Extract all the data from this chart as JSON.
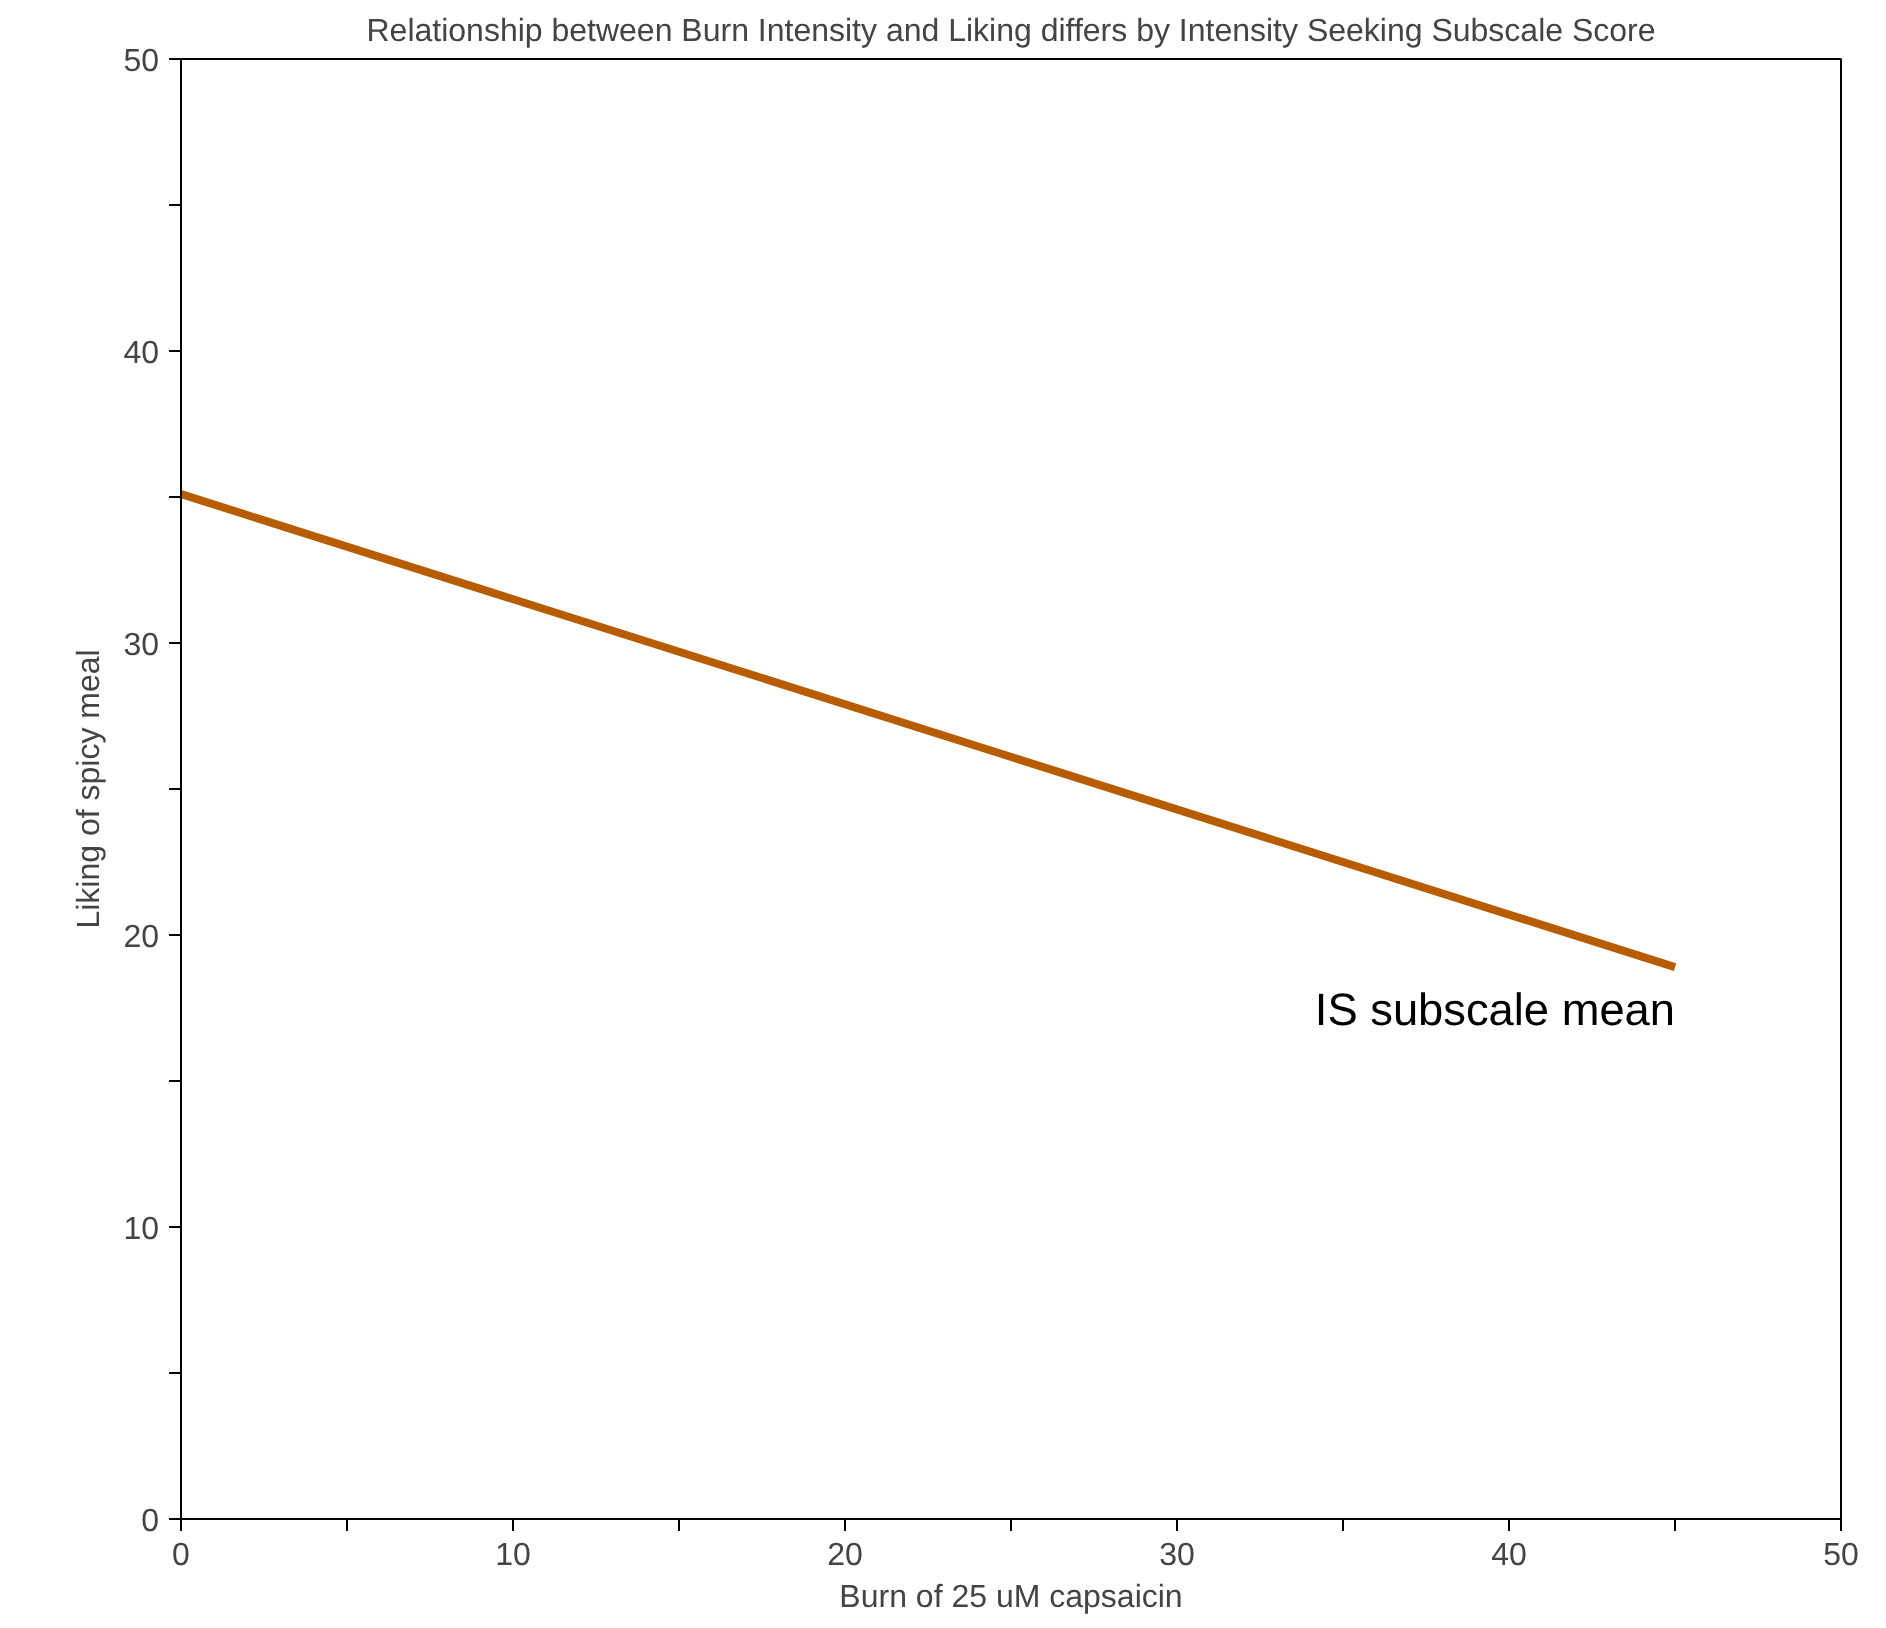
{
  "chart_data": {
    "type": "line",
    "title": "Relationship between Burn Intensity and Liking differs by Intensity Seeking Subscale Score",
    "xlabel": "Burn of 25 uM capsaicin",
    "ylabel": "Liking of spicy meal",
    "x": [
      0,
      45
    ],
    "series": [
      {
        "name": "IS subscale mean",
        "color": "#b85c00",
        "values": [
          35.1,
          18.9
        ]
      }
    ],
    "xlim": [
      0,
      50
    ],
    "ylim": [
      0,
      50
    ],
    "xticks": [
      0,
      {
        "value": 5,
        "label": null
      },
      10,
      {
        "value": 15,
        "label": null
      },
      20,
      {
        "value": 25,
        "label": null
      },
      30,
      {
        "value": 35,
        "label": null
      },
      40,
      {
        "value": 45,
        "label": null
      },
      50
    ],
    "yticks": [
      0,
      {
        "value": 5,
        "label": null
      },
      10,
      {
        "value": 15,
        "label": null
      },
      20,
      {
        "value": 25,
        "label": null
      },
      30,
      {
        "value": 35,
        "label": null
      },
      40,
      {
        "value": 45,
        "label": null
      },
      50
    ],
    "grid": false,
    "legend": false,
    "marker": "none",
    "line_style": "solid"
  }
}
